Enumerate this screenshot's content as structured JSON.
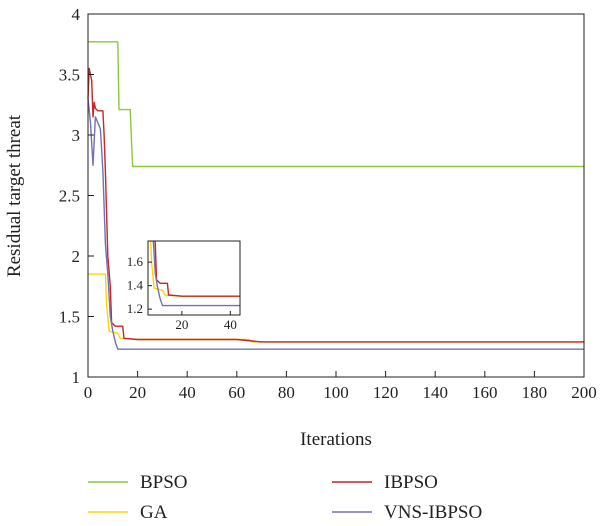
{
  "chart_data": {
    "type": "line",
    "xlabel": "Iterations",
    "ylabel": "Residual target threat",
    "xlim": [
      0,
      200
    ],
    "ylim": [
      1,
      4
    ],
    "xticks": [
      "0",
      "20",
      "40",
      "60",
      "80",
      "100",
      "120",
      "140",
      "160",
      "180",
      "200"
    ],
    "yticks": [
      "1",
      "1.5",
      "2",
      "2.5",
      "3",
      "3.5",
      "4"
    ],
    "grid": false,
    "legend_position": "bottom",
    "series": [
      {
        "name": "BPSO",
        "color": "#8dc63f",
        "points": [
          [
            0,
            3.77
          ],
          [
            12,
            3.77
          ],
          [
            12.5,
            3.21
          ],
          [
            17,
            3.21
          ],
          [
            18,
            2.74
          ],
          [
            200,
            2.74
          ]
        ]
      },
      {
        "name": "IBPSO",
        "color": "#c1272d",
        "points": [
          [
            0,
            3.3
          ],
          [
            0.5,
            3.55
          ],
          [
            1.5,
            3.45
          ],
          [
            2,
            3.15
          ],
          [
            2.5,
            3.27
          ],
          [
            3,
            3.22
          ],
          [
            4,
            3.2
          ],
          [
            6,
            3.2
          ],
          [
            6.5,
            3.0
          ],
          [
            7,
            2.7
          ],
          [
            8,
            2.0
          ],
          [
            9,
            1.75
          ],
          [
            9.5,
            1.45
          ],
          [
            11,
            1.42
          ],
          [
            14,
            1.42
          ],
          [
            14.5,
            1.32
          ],
          [
            20,
            1.31
          ],
          [
            60,
            1.31
          ],
          [
            70,
            1.29
          ],
          [
            200,
            1.29
          ]
        ]
      },
      {
        "name": "GA",
        "color": "#ffd400",
        "points": [
          [
            0,
            1.85
          ],
          [
            7,
            1.85
          ],
          [
            7.5,
            1.6
          ],
          [
            8.5,
            1.38
          ],
          [
            10,
            1.37
          ],
          [
            12,
            1.36
          ],
          [
            13,
            1.32
          ],
          [
            20,
            1.31
          ],
          [
            65,
            1.31
          ],
          [
            66,
            1.29
          ],
          [
            200,
            1.29
          ]
        ]
      },
      {
        "name": "VNS-IBPSO",
        "color": "#7570b3",
        "points": [
          [
            0,
            3.3
          ],
          [
            1,
            3.1
          ],
          [
            2,
            2.75
          ],
          [
            3,
            3.15
          ],
          [
            4,
            3.1
          ],
          [
            5,
            3.05
          ],
          [
            6,
            2.7
          ],
          [
            7,
            2.1
          ],
          [
            8,
            1.85
          ],
          [
            9,
            1.5
          ],
          [
            10,
            1.38
          ],
          [
            11,
            1.29
          ],
          [
            12,
            1.23
          ],
          [
            200,
            1.23
          ]
        ]
      }
    ],
    "inset": {
      "xlim": [
        6,
        44
      ],
      "ylim": [
        1.15,
        1.78
      ],
      "xticks": [
        "20",
        "40"
      ],
      "yticks": [
        "1.2",
        "1.4",
        "1.6"
      ]
    }
  }
}
